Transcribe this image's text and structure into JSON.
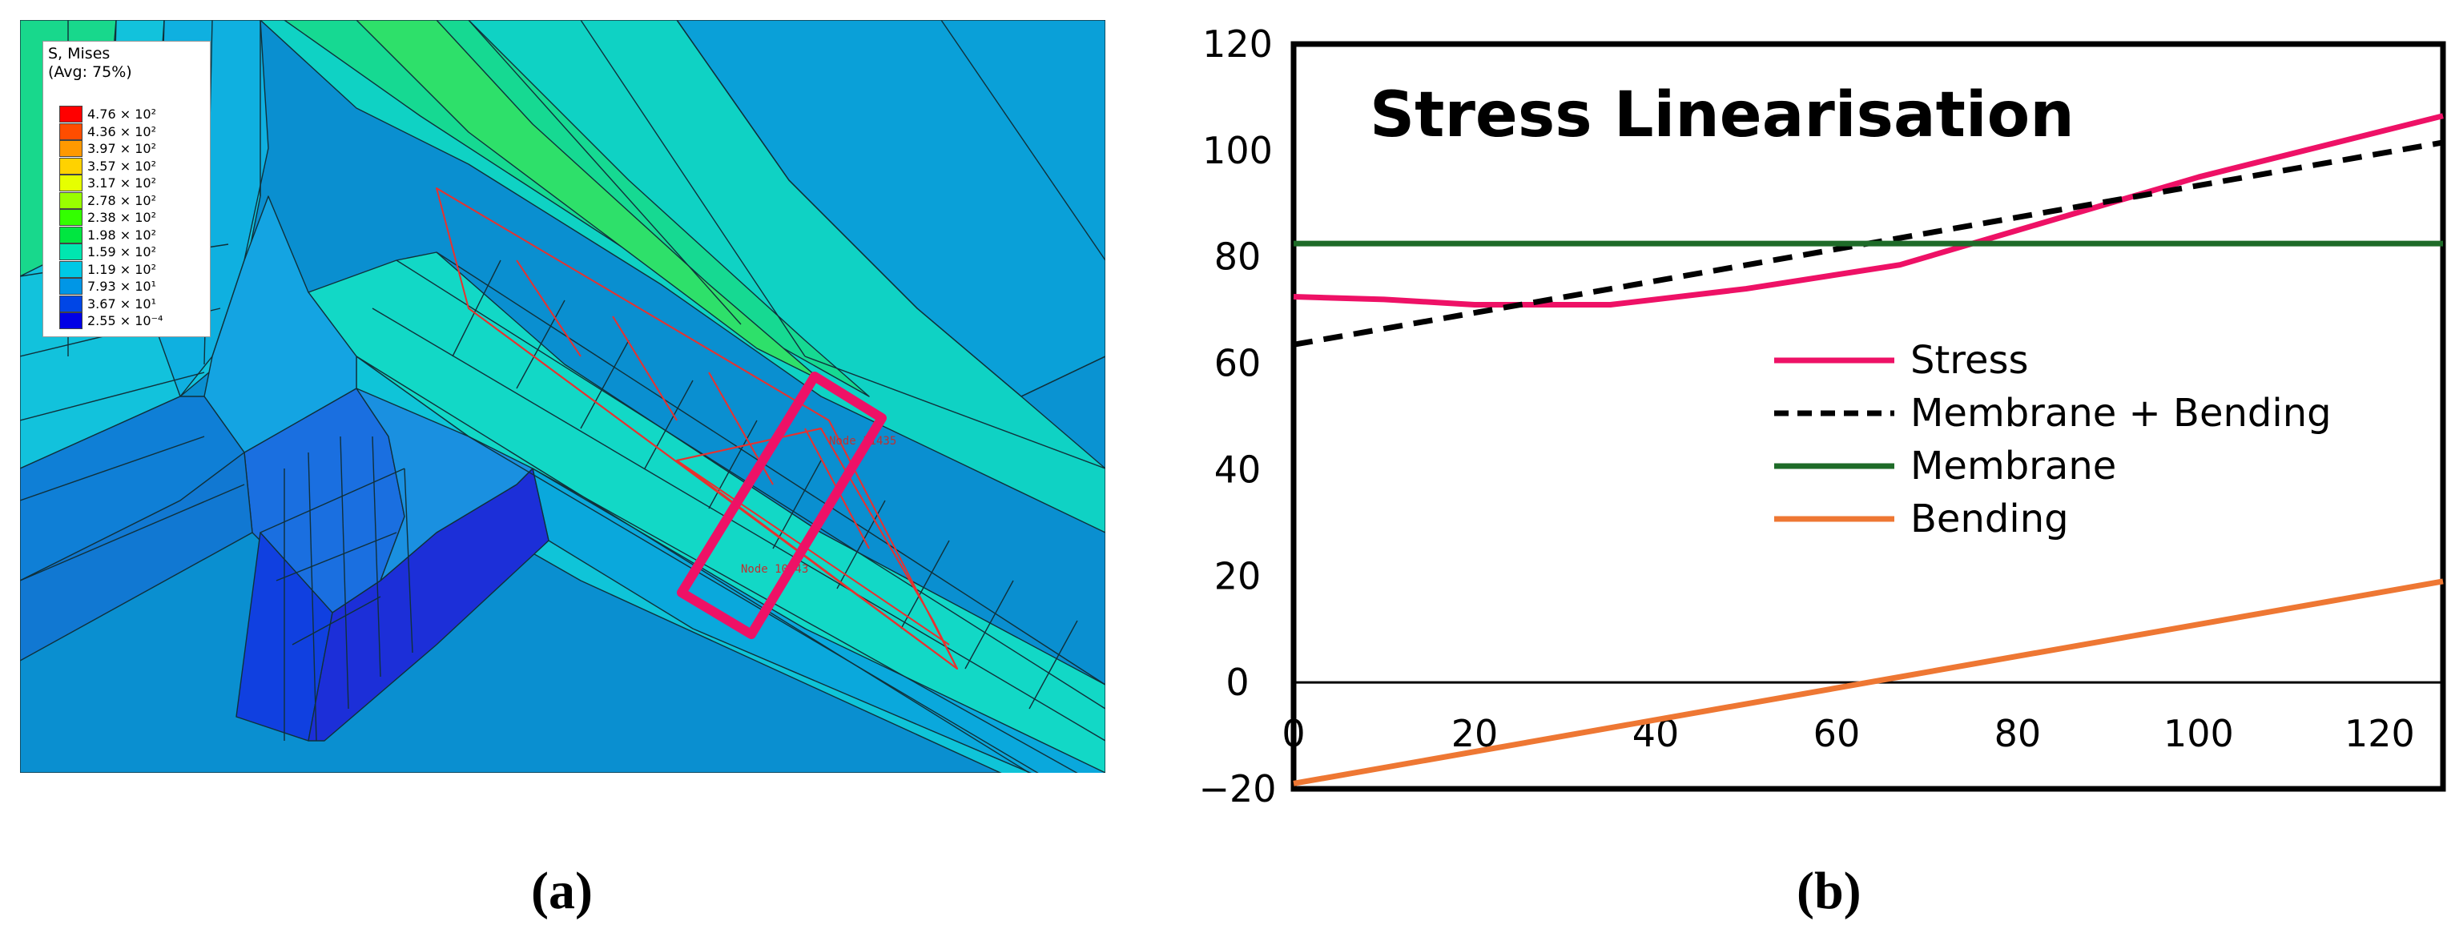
{
  "fea": {
    "legend": {
      "title": "S, Mises\n(Avg: 75%)",
      "levels": [
        {
          "label": "4.76 × 10²",
          "color": "#ff0000"
        },
        {
          "label": "4.36 × 10²",
          "color": "#ff4d00"
        },
        {
          "label": "3.97 × 10²",
          "color": "#ff9900"
        },
        {
          "label": "3.57 × 10²",
          "color": "#ffd200"
        },
        {
          "label": "3.17 × 10²",
          "color": "#e6ff00"
        },
        {
          "label": "2.78 × 10²",
          "color": "#99ff00"
        },
        {
          "label": "2.38 × 10²",
          "color": "#33ff00"
        },
        {
          "label": "1.98 × 10²",
          "color": "#00e640"
        },
        {
          "label": "1.59 × 10²",
          "color": "#00e6b0"
        },
        {
          "label": "1.19 × 10²",
          "color": "#00c8e6"
        },
        {
          "label": "7.93 × 10¹",
          "color": "#0096e6"
        },
        {
          "label": "3.67 × 10¹",
          "color": "#0046e6"
        },
        {
          "label": "2.55 × 10⁻⁴",
          "color": "#0000e6"
        }
      ]
    },
    "node_labels": [
      "Node 11435",
      "Node 10143"
    ],
    "highlight_color": "#ee1166"
  },
  "captions": {
    "a": "(a)",
    "b": "(b)"
  },
  "chart_data": {
    "type": "line",
    "title": "Stress Linearisation",
    "xlim": [
      0,
      127
    ],
    "ylim": [
      -20,
      120
    ],
    "x_ticks": [
      0,
      20,
      40,
      60,
      80,
      100,
      120
    ],
    "y_ticks": [
      -20,
      0,
      20,
      40,
      60,
      80,
      100,
      120
    ],
    "y_tick_labels": [
      "−20",
      "0",
      "20",
      "40",
      "60",
      "80",
      "100",
      "120"
    ],
    "legend_position": "center-right",
    "grid": false,
    "series": [
      {
        "name": "Stress",
        "color": "#ee1166",
        "dash": "",
        "x": [
          0,
          10,
          20,
          35,
          50,
          67,
          80,
          100,
          127
        ],
        "y": [
          72.5,
          72,
          71,
          71,
          74,
          78.5,
          85,
          95,
          106.5
        ]
      },
      {
        "name": "Membrane + Bending",
        "color": "#000000",
        "dash": "24,14",
        "x": [
          0,
          127
        ],
        "y": [
          63.5,
          101.5
        ]
      },
      {
        "name": "Membrane",
        "color": "#1e6b28",
        "dash": "",
        "x": [
          0,
          127
        ],
        "y": [
          82.5,
          82.5
        ]
      },
      {
        "name": "Bending",
        "color": "#ee7733",
        "dash": "",
        "x": [
          0,
          127
        ],
        "y": [
          -19,
          19
        ]
      }
    ]
  }
}
